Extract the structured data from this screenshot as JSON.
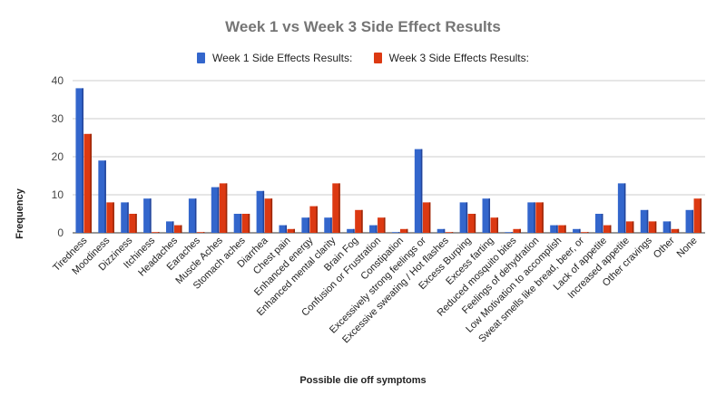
{
  "chart_data": {
    "type": "bar",
    "title": "Week 1 vs Week 3 Side Effect Results",
    "xlabel": "Possible die off symptoms",
    "ylabel": "Frequency",
    "ylim": [
      0,
      40
    ],
    "yticks": [
      0,
      10,
      20,
      30,
      40
    ],
    "grid": true,
    "legend": "top",
    "categories": [
      "Tiredness",
      "Moodiness",
      "Dizziness",
      "Itchiness",
      "Headaches",
      "Earaches",
      "Muscle Aches",
      "Stomach aches",
      "Diarrhea",
      "Chest pain",
      "Enhanced energy",
      "Enhanced mental clarity",
      "Brain Fog",
      "Confusion or Frustration",
      "Constipation",
      "Excessively strong feelings or",
      "Excessive sweating / Hot flashes",
      "Excess Burping",
      "Excess farting",
      "Reduced mosquito bites",
      "Feelings of dehydration",
      "Low Motivation to accomplish",
      "Sweat smells like bread, beer, or",
      "Lack of appetite",
      "Increased appetite",
      "Other cravings",
      "Other",
      "None"
    ],
    "series": [
      {
        "name": "Week 1 Side Effects Results:",
        "color": "#3366cc",
        "values": [
          38,
          19,
          8,
          9,
          3,
          9,
          12,
          5,
          11,
          2,
          4,
          4,
          1,
          2,
          0,
          22,
          1,
          8,
          9,
          0,
          8,
          2,
          1,
          5,
          13,
          6,
          3,
          6
        ]
      },
      {
        "name": "Week 3 Side Effects Results:",
        "color": "#dc3912",
        "values": [
          26,
          8,
          5,
          0,
          2,
          0,
          13,
          5,
          9,
          1,
          7,
          13,
          6,
          4,
          1,
          8,
          0,
          5,
          4,
          1,
          8,
          2,
          0,
          2,
          3,
          3,
          1,
          9
        ]
      }
    ]
  }
}
